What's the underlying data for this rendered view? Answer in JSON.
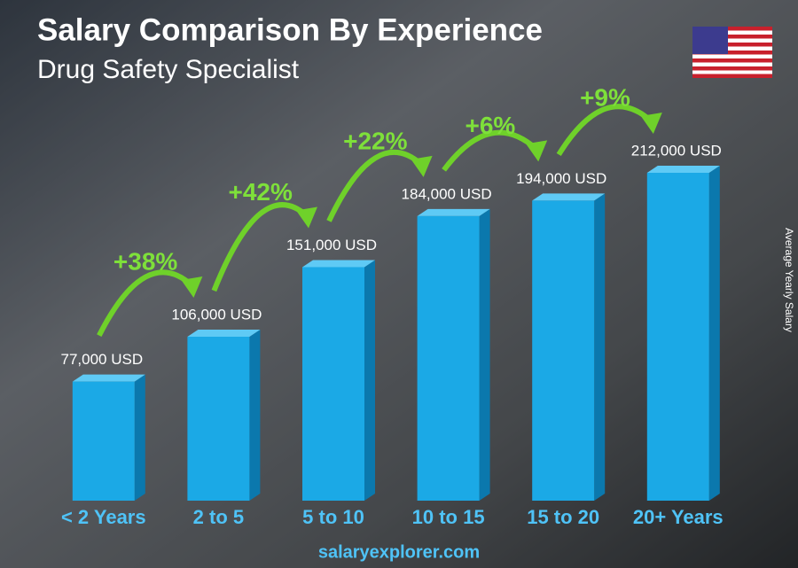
{
  "chart_data": {
    "type": "bar",
    "title": "Salary Comparison By Experience",
    "subtitle": "Drug Safety Specialist",
    "y_label": "Average Yearly Salary",
    "categories": [
      "< 2 Years",
      "2 to 5",
      "5 to 10",
      "10 to 15",
      "15 to 20",
      "20+ Years"
    ],
    "values": [
      77000,
      106000,
      151000,
      184000,
      194000,
      212000
    ],
    "value_labels": [
      "77,000 USD",
      "106,000 USD",
      "151,000 USD",
      "184,000 USD",
      "194,000 USD",
      "212,000 USD"
    ],
    "changes": [
      "+38%",
      "+42%",
      "+22%",
      "+6%",
      "+9%"
    ],
    "color": "#1ba9e6",
    "footer": "salaryexplorer.com"
  }
}
